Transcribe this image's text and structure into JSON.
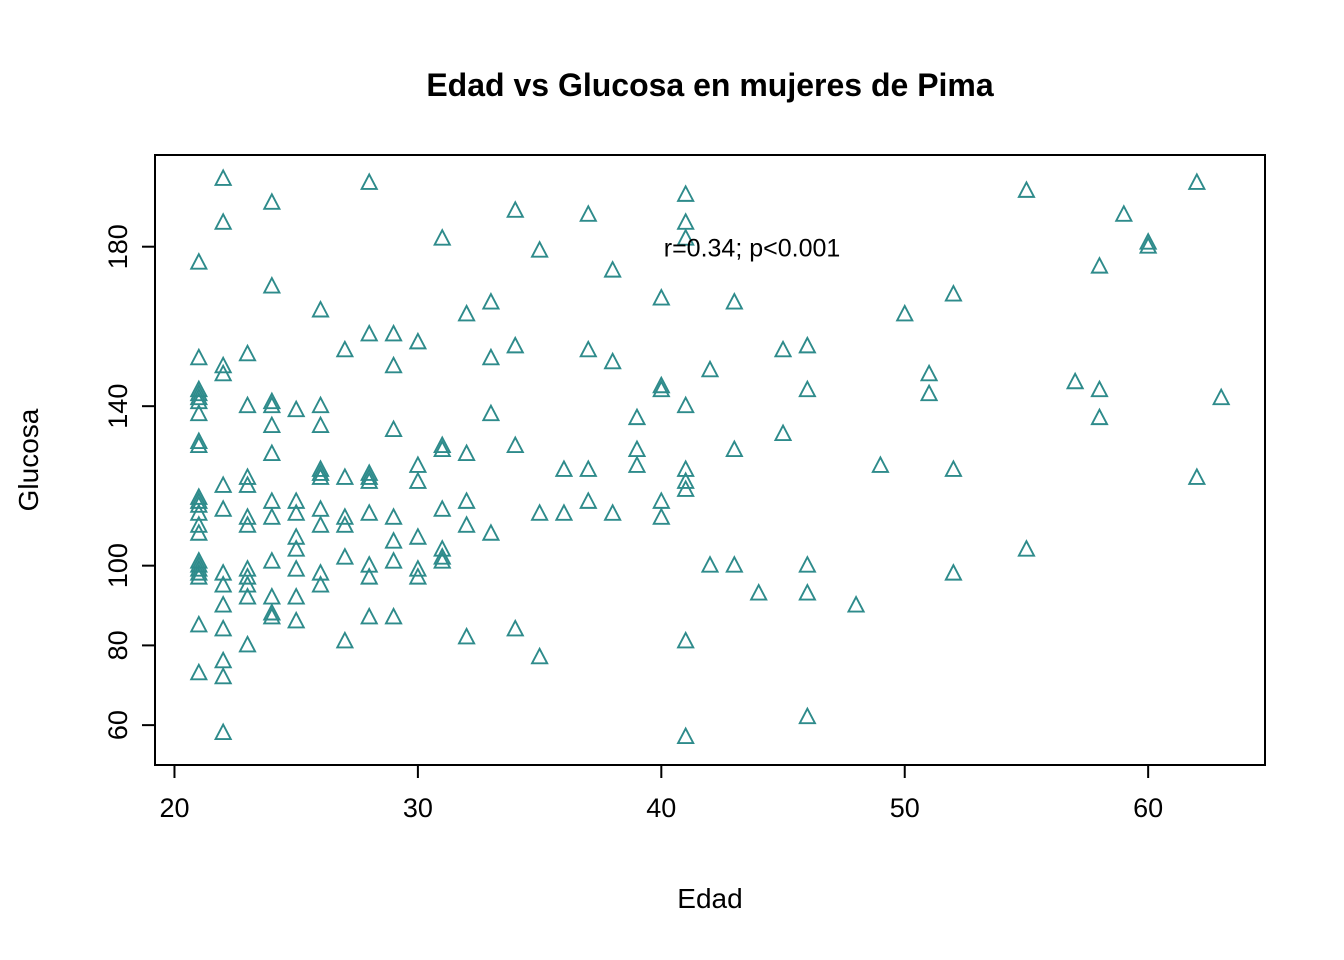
{
  "chart_data": {
    "type": "scatter",
    "title": "Edad vs Glucosa en mujeres de Pima",
    "xlabel": "Edad",
    "ylabel": "Glucosa",
    "x_ticks": [
      20,
      30,
      40,
      50,
      60
    ],
    "y_ticks": [
      60,
      80,
      100,
      140,
      180
    ],
    "xlim": [
      19.2,
      64.8
    ],
    "ylim": [
      50,
      203
    ],
    "grid": false,
    "legend": "none",
    "marker": "open-triangle",
    "marker_color": "#2E8B8B",
    "annotation": {
      "text": "r=0.34; p<0.001",
      "x": 40.1,
      "y": 177.5
    },
    "points": [
      [
        21,
        176
      ],
      [
        21,
        152
      ],
      [
        21,
        144
      ],
      [
        21,
        143
      ],
      [
        21,
        142
      ],
      [
        21,
        141
      ],
      [
        21,
        138
      ],
      [
        21,
        131
      ],
      [
        21,
        130
      ],
      [
        21,
        117
      ],
      [
        21,
        116
      ],
      [
        21,
        115
      ],
      [
        21,
        113
      ],
      [
        21,
        110
      ],
      [
        21,
        108
      ],
      [
        21,
        101
      ],
      [
        21,
        100
      ],
      [
        21,
        99
      ],
      [
        21,
        98
      ],
      [
        21,
        97
      ],
      [
        21,
        85
      ],
      [
        21,
        73
      ],
      [
        22,
        197
      ],
      [
        22,
        186
      ],
      [
        22,
        150
      ],
      [
        22,
        148
      ],
      [
        22,
        120
      ],
      [
        22,
        114
      ],
      [
        22,
        98
      ],
      [
        22,
        95
      ],
      [
        22,
        90
      ],
      [
        22,
        84
      ],
      [
        22,
        76
      ],
      [
        22,
        72
      ],
      [
        22,
        58
      ],
      [
        23,
        153
      ],
      [
        23,
        140
      ],
      [
        23,
        122
      ],
      [
        23,
        120
      ],
      [
        23,
        112
      ],
      [
        23,
        110
      ],
      [
        23,
        99
      ],
      [
        23,
        97
      ],
      [
        23,
        95
      ],
      [
        23,
        92
      ],
      [
        23,
        80
      ],
      [
        24,
        191
      ],
      [
        24,
        170
      ],
      [
        24,
        141
      ],
      [
        24,
        140
      ],
      [
        24,
        135
      ],
      [
        24,
        128
      ],
      [
        24,
        116
      ],
      [
        24,
        112
      ],
      [
        24,
        101
      ],
      [
        24,
        92
      ],
      [
        24,
        88
      ],
      [
        24,
        87
      ],
      [
        25,
        139
      ],
      [
        25,
        116
      ],
      [
        25,
        113
      ],
      [
        25,
        107
      ],
      [
        25,
        104
      ],
      [
        25,
        99
      ],
      [
        25,
        92
      ],
      [
        25,
        86
      ],
      [
        26,
        164
      ],
      [
        26,
        140
      ],
      [
        26,
        135
      ],
      [
        26,
        124
      ],
      [
        26,
        123
      ],
      [
        26,
        122
      ],
      [
        26,
        114
      ],
      [
        26,
        110
      ],
      [
        26,
        98
      ],
      [
        26,
        95
      ],
      [
        27,
        154
      ],
      [
        27,
        122
      ],
      [
        27,
        112
      ],
      [
        27,
        110
      ],
      [
        27,
        102
      ],
      [
        27,
        81
      ],
      [
        28,
        196
      ],
      [
        28,
        158
      ],
      [
        28,
        123
      ],
      [
        28,
        122
      ],
      [
        28,
        121
      ],
      [
        28,
        113
      ],
      [
        28,
        100
      ],
      [
        28,
        97
      ],
      [
        28,
        87
      ],
      [
        29,
        158
      ],
      [
        29,
        150
      ],
      [
        29,
        134
      ],
      [
        29,
        112
      ],
      [
        29,
        106
      ],
      [
        29,
        101
      ],
      [
        29,
        87
      ],
      [
        30,
        156
      ],
      [
        30,
        125
      ],
      [
        30,
        121
      ],
      [
        30,
        107
      ],
      [
        30,
        99
      ],
      [
        30,
        97
      ],
      [
        31,
        182
      ],
      [
        31,
        130
      ],
      [
        31,
        129
      ],
      [
        31,
        114
      ],
      [
        31,
        104
      ],
      [
        31,
        102
      ],
      [
        31,
        101
      ],
      [
        32,
        163
      ],
      [
        32,
        128
      ],
      [
        32,
        116
      ],
      [
        32,
        110
      ],
      [
        32,
        82
      ],
      [
        33,
        166
      ],
      [
        33,
        152
      ],
      [
        33,
        138
      ],
      [
        33,
        108
      ],
      [
        34,
        189
      ],
      [
        34,
        155
      ],
      [
        34,
        130
      ],
      [
        34,
        84
      ],
      [
        35,
        179
      ],
      [
        35,
        113
      ],
      [
        35,
        77
      ],
      [
        36,
        124
      ],
      [
        36,
        113
      ],
      [
        37,
        188
      ],
      [
        37,
        154
      ],
      [
        37,
        124
      ],
      [
        37,
        116
      ],
      [
        38,
        174
      ],
      [
        38,
        151
      ],
      [
        38,
        113
      ],
      [
        39,
        137
      ],
      [
        39,
        129
      ],
      [
        39,
        125
      ],
      [
        40,
        167
      ],
      [
        40,
        145
      ],
      [
        40,
        144
      ],
      [
        40,
        116
      ],
      [
        40,
        112
      ],
      [
        41,
        193
      ],
      [
        41,
        186
      ],
      [
        41,
        182
      ],
      [
        41,
        140
      ],
      [
        41,
        124
      ],
      [
        41,
        121
      ],
      [
        41,
        119
      ],
      [
        41,
        81
      ],
      [
        41,
        57
      ],
      [
        42,
        149
      ],
      [
        42,
        100
      ],
      [
        43,
        166
      ],
      [
        43,
        129
      ],
      [
        43,
        100
      ],
      [
        44,
        93
      ],
      [
        45,
        154
      ],
      [
        45,
        133
      ],
      [
        46,
        155
      ],
      [
        46,
        144
      ],
      [
        46,
        100
      ],
      [
        46,
        93
      ],
      [
        46,
        62
      ],
      [
        48,
        90
      ],
      [
        49,
        125
      ],
      [
        50,
        163
      ],
      [
        51,
        148
      ],
      [
        51,
        143
      ],
      [
        52,
        168
      ],
      [
        52,
        124
      ],
      [
        52,
        98
      ],
      [
        55,
        194
      ],
      [
        55,
        104
      ],
      [
        57,
        146
      ],
      [
        58,
        175
      ],
      [
        58,
        144
      ],
      [
        58,
        137
      ],
      [
        59,
        188
      ],
      [
        60,
        181
      ],
      [
        60,
        180
      ],
      [
        62,
        196
      ],
      [
        62,
        122
      ],
      [
        63,
        142
      ]
    ]
  }
}
